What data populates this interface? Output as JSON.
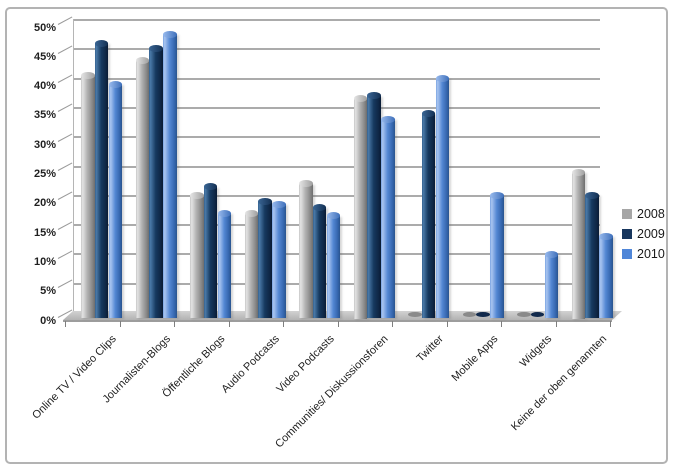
{
  "chart_data": {
    "type": "bar",
    "style": "3d-cylinder-columns",
    "title": "",
    "xlabel": "",
    "ylabel": "",
    "categories": [
      "Online TV / Video Clips",
      "Journalisten-Blogs",
      "Öffentliche Blogs",
      "Audio Podcasts",
      "Video Podcasts",
      "Communities/ Diskussionsforen",
      "Twitter",
      "Mobile Apps",
      "Widgets",
      "Keine der oben genannten"
    ],
    "series": [
      {
        "name": "2008",
        "color": "#a6a6a6",
        "values": [
          41.5,
          44,
          21,
          18,
          23,
          37.5,
          0,
          0,
          0,
          25
        ]
      },
      {
        "name": "2009",
        "color": "#17365d",
        "values": [
          47,
          46,
          22.5,
          20,
          19,
          38,
          35,
          0,
          0,
          21
        ]
      },
      {
        "name": "2010",
        "color": "#4f86d8",
        "values": [
          40,
          48.5,
          18,
          19.5,
          17.5,
          34,
          41,
          21,
          11,
          14
        ]
      }
    ],
    "y_axis": {
      "min": 0,
      "max": 50,
      "step": 5,
      "suffix": "%"
    },
    "grid": true,
    "legend_position": "right",
    "legend_labels": [
      "2008",
      "2009",
      "2010"
    ]
  },
  "colors": {
    "frame_border": "#b3b3b3",
    "gridline": "#ababab",
    "floor": "#bdbdbd",
    "axis_text": "#1f1f1f",
    "series_2008": "#a6a6a6",
    "series_2009": "#17365d",
    "series_2010": "#4f86d8"
  }
}
